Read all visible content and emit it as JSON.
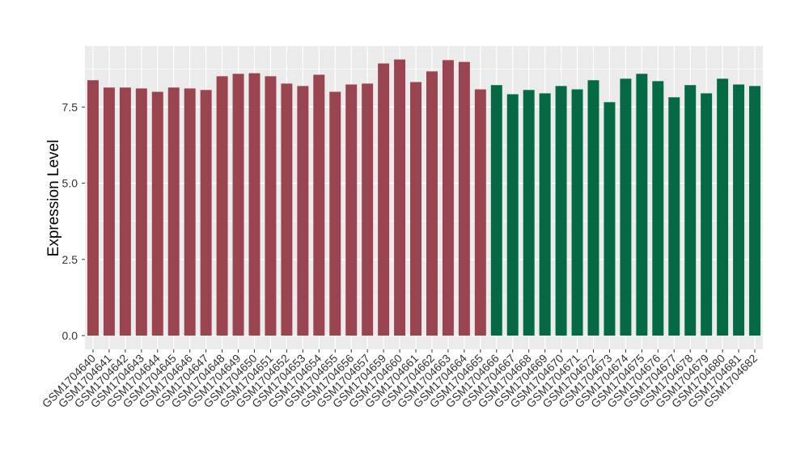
{
  "chart_data": {
    "type": "bar",
    "y_label": "Expression Level",
    "categories": [
      "GSM1704640",
      "GSM1704641",
      "GSM1704642",
      "GSM1704643",
      "GSM1704644",
      "GSM1704645",
      "GSM1704646",
      "GSM1704647",
      "GSM1704648",
      "GSM1704649",
      "GSM1704650",
      "GSM1704651",
      "GSM1704652",
      "GSM1704653",
      "GSM1704654",
      "GSM1704655",
      "GSM1704656",
      "GSM1704657",
      "GSM1704659",
      "GSM1704660",
      "GSM1704661",
      "GSM1704662",
      "GSM1704663",
      "GSM1704664",
      "GSM1704665",
      "GSM1704666",
      "GSM1704667",
      "GSM1704668",
      "GSM1704669",
      "GSM1704670",
      "GSM1704671",
      "GSM1704672",
      "GSM1704673",
      "GSM1704674",
      "GSM1704675",
      "GSM1704676",
      "GSM1704677",
      "GSM1704678",
      "GSM1704679",
      "GSM1704680",
      "GSM1704681",
      "GSM1704682"
    ],
    "values": [
      8.38,
      8.14,
      8.14,
      8.11,
      8.0,
      8.14,
      8.11,
      8.06,
      8.51,
      8.59,
      8.61,
      8.51,
      8.27,
      8.19,
      8.56,
      8.0,
      8.24,
      8.27,
      8.93,
      9.06,
      8.32,
      8.67,
      9.04,
      8.98,
      8.08,
      8.22,
      7.92,
      8.06,
      7.95,
      8.19,
      8.08,
      8.38,
      7.66,
      8.43,
      8.59,
      8.35,
      7.82,
      8.22,
      7.95,
      8.43,
      8.24,
      8.19
    ],
    "colors": [
      "#9a4450",
      "#9a4450",
      "#9a4450",
      "#9a4450",
      "#9a4450",
      "#9a4450",
      "#9a4450",
      "#9a4450",
      "#9a4450",
      "#9a4450",
      "#9a4450",
      "#9a4450",
      "#9a4450",
      "#9a4450",
      "#9a4450",
      "#9a4450",
      "#9a4450",
      "#9a4450",
      "#9a4450",
      "#9a4450",
      "#9a4450",
      "#9a4450",
      "#9a4450",
      "#9a4450",
      "#9a4450",
      "#046a43",
      "#046a43",
      "#046a43",
      "#046a43",
      "#046a43",
      "#046a43",
      "#046a43",
      "#046a43",
      "#046a43",
      "#046a43",
      "#046a43",
      "#046a43",
      "#046a43",
      "#046a43",
      "#046a43",
      "#046a43",
      "#046a43"
    ],
    "ylim": [
      -0.45,
      9.5
    ],
    "yticks": [
      {
        "value": 0,
        "label": "0.0"
      },
      2.5,
      {
        "value": 5,
        "label": "5.0"
      },
      7.5
    ],
    "grid": true
  }
}
